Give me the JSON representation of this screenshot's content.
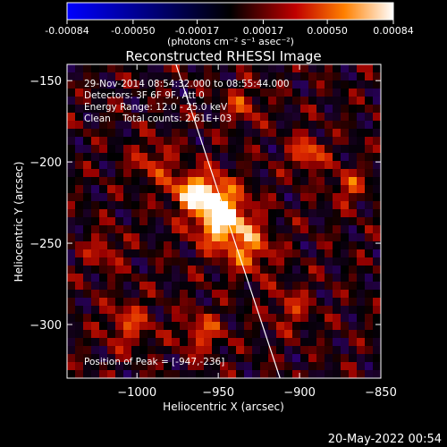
{
  "colorbar": {
    "ticks": [
      "-0.00084",
      "-0.00050",
      "-0.00017",
      "0.00017",
      "0.00050",
      "0.00084"
    ],
    "tick_values": [
      -0.00084,
      -0.0005,
      -0.00017,
      0.00017,
      0.0005,
      0.00084
    ],
    "range": [
      -0.00084,
      0.00084
    ],
    "unit_label": "(photons cm⁻² s⁻¹ asec⁻²)",
    "colors": [
      "#0000ff",
      "#000000",
      "#c00000",
      "#ff8000",
      "#ffffff"
    ]
  },
  "info": {
    "time": "29-Nov-2014 08:54:32.000 to 08:55:44.000",
    "detectors": "Detectors: 3F 6F 9F, Att 0",
    "energy": "Energy Range: 12.0 - 25.0 keV",
    "method": "Clean    Total counts: 2.61E+03",
    "peak": "Position of Peak = [-947,-236]"
  },
  "footer": {
    "timestamp": "20-May-2022 00:54"
  },
  "chart_data": {
    "type": "heatmap",
    "title": "Reconstructed RHESSI Image",
    "xlabel": "Heliocentric X (arcsec)",
    "ylabel": "Heliocentric Y (arcsec)",
    "xlim": [
      -1043,
      -850
    ],
    "ylim": [
      -333,
      -140
    ],
    "x_ticks": [
      -1000,
      -950,
      -900,
      -850
    ],
    "y_ticks": [
      -150,
      -200,
      -250,
      -300
    ],
    "x_tick_labels": [
      "−1000",
      "−950",
      "−900",
      "−850"
    ],
    "y_tick_labels": [
      "−150",
      "−200",
      "−250",
      "−300"
    ],
    "peak": {
      "x": -947,
      "y": -236
    },
    "limb_line": [
      [
        -976,
        -140
      ],
      [
        -912,
        -333
      ]
    ],
    "sources": [
      {
        "x": -947,
        "y": -236,
        "amplitude": 0.00084,
        "sigma": 12
      },
      {
        "x": -955,
        "y": -220,
        "amplitude": 0.0006,
        "sigma": 9
      },
      {
        "x": -970,
        "y": -218,
        "amplitude": 0.0005,
        "sigma": 8
      },
      {
        "x": -930,
        "y": -255,
        "amplitude": 0.00045,
        "sigma": 10
      },
      {
        "x": -895,
        "y": -195,
        "amplitude": 0.00055,
        "sigma": 7
      },
      {
        "x": -870,
        "y": -215,
        "amplitude": 0.0004,
        "sigma": 7
      },
      {
        "x": -990,
        "y": -200,
        "amplitude": 0.00035,
        "sigma": 9
      },
      {
        "x": -1020,
        "y": -255,
        "amplitude": 0.0003,
        "sigma": 8
      },
      {
        "x": -1005,
        "y": -300,
        "amplitude": 0.00038,
        "sigma": 10
      },
      {
        "x": -960,
        "y": -305,
        "amplitude": 0.0004,
        "sigma": 9
      },
      {
        "x": -935,
        "y": -165,
        "amplitude": 0.00035,
        "sigma": 8
      },
      {
        "x": -905,
        "y": -290,
        "amplitude": 0.0003,
        "sigma": 9
      }
    ]
  }
}
